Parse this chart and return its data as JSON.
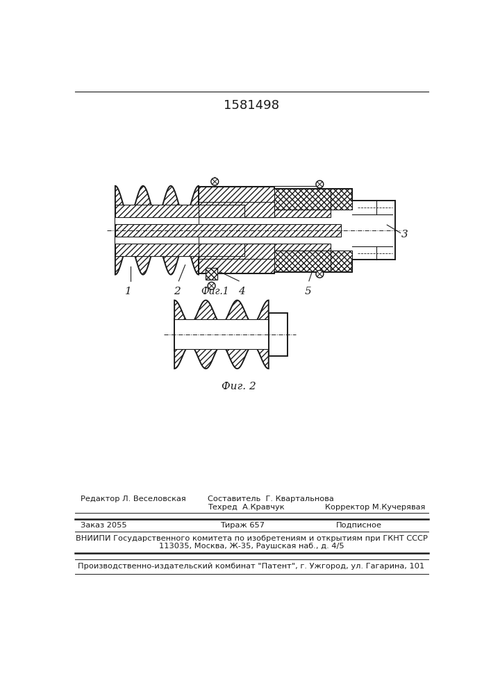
{
  "title": "1581498",
  "fig1_label": "Фиг.1",
  "fig2_label": "Фиг. 2",
  "bg_color": "#ffffff",
  "line_color": "#1a1a1a",
  "footer_editor": "Редактор Л. Веселовская",
  "footer_compiler": "Составитель  Г. Квартальнова",
  "footer_techred": "Техред  А.Кравчук",
  "footer_corrector": "Корректор М.Кучерявая",
  "footer_order": "Заказ 2055",
  "footer_tirazh": "Тираж 657",
  "footer_podpisnoe": "Подписное",
  "footer_vniip1": "ВНИИПИ Государственного комитета по изобретениям и открытиям при ГКНТ СССР",
  "footer_vniip2": "113035, Москва, Ж-35, Раушская наб., д. 4/5",
  "footer_patent": "Производственно-издательский комбинат \"Патент\", г. Ужгород, ул. Гагарина, 101"
}
